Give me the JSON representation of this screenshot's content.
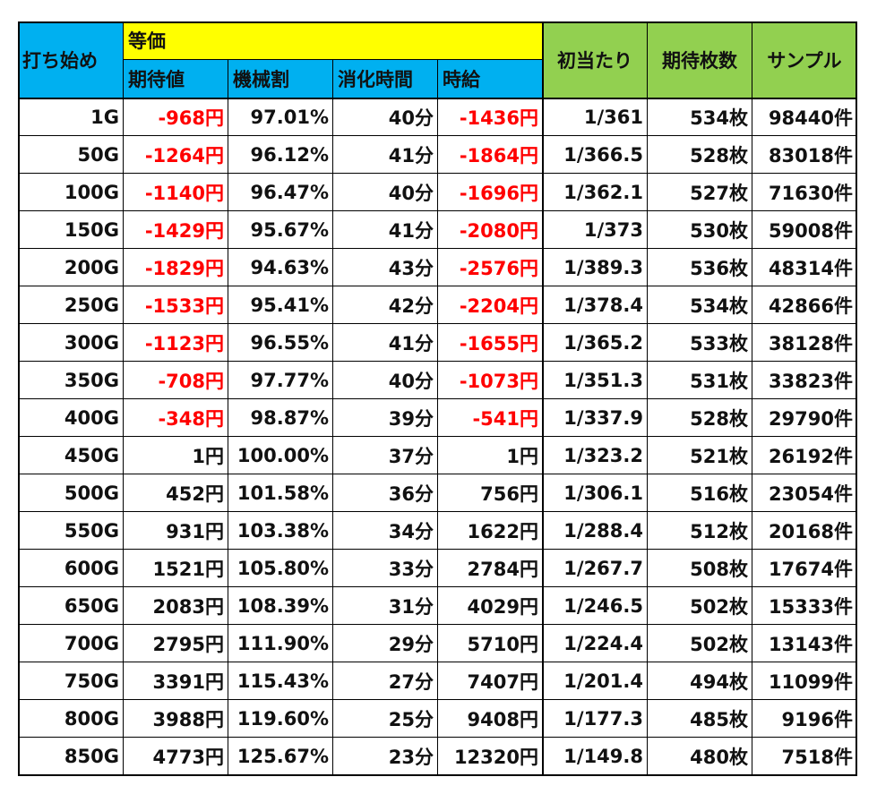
{
  "headers": {
    "start": "打ち始め",
    "group": "等価",
    "expected_value": "期待値",
    "payout_rate": "機械割",
    "time": "消化時間",
    "hourly": "時給",
    "first_hit": "初当たり",
    "expected_medals": "期待枚数",
    "sample": "サンプル"
  },
  "colors": {
    "blue_header": "#00b0f0",
    "yellow_header": "#ffff00",
    "green_header": "#92d050",
    "negative": "#ff0000"
  },
  "rows": [
    {
      "start": "1G",
      "ev": "-968円",
      "rate": "97.01%",
      "time": "40分",
      "hourly": "-1436円",
      "hit": "1/361",
      "medals": "534枚",
      "sample": "98440件",
      "neg": true
    },
    {
      "start": "50G",
      "ev": "-1264円",
      "rate": "96.12%",
      "time": "41分",
      "hourly": "-1864円",
      "hit": "1/366.5",
      "medals": "528枚",
      "sample": "83018件",
      "neg": true
    },
    {
      "start": "100G",
      "ev": "-1140円",
      "rate": "96.47%",
      "time": "40分",
      "hourly": "-1696円",
      "hit": "1/362.1",
      "medals": "527枚",
      "sample": "71630件",
      "neg": true
    },
    {
      "start": "150G",
      "ev": "-1429円",
      "rate": "95.67%",
      "time": "41分",
      "hourly": "-2080円",
      "hit": "1/373",
      "medals": "530枚",
      "sample": "59008件",
      "neg": true
    },
    {
      "start": "200G",
      "ev": "-1829円",
      "rate": "94.63%",
      "time": "43分",
      "hourly": "-2576円",
      "hit": "1/389.3",
      "medals": "536枚",
      "sample": "48314件",
      "neg": true
    },
    {
      "start": "250G",
      "ev": "-1533円",
      "rate": "95.41%",
      "time": "42分",
      "hourly": "-2204円",
      "hit": "1/378.4",
      "medals": "534枚",
      "sample": "42866件",
      "neg": true
    },
    {
      "start": "300G",
      "ev": "-1123円",
      "rate": "96.55%",
      "time": "41分",
      "hourly": "-1655円",
      "hit": "1/365.2",
      "medals": "533枚",
      "sample": "38128件",
      "neg": true
    },
    {
      "start": "350G",
      "ev": "-708円",
      "rate": "97.77%",
      "time": "40分",
      "hourly": "-1073円",
      "hit": "1/351.3",
      "medals": "531枚",
      "sample": "33823件",
      "neg": true
    },
    {
      "start": "400G",
      "ev": "-348円",
      "rate": "98.87%",
      "time": "39分",
      "hourly": "-541円",
      "hit": "1/337.9",
      "medals": "528枚",
      "sample": "29790件",
      "neg": true
    },
    {
      "start": "450G",
      "ev": "1円",
      "rate": "100.00%",
      "time": "37分",
      "hourly": "1円",
      "hit": "1/323.2",
      "medals": "521枚",
      "sample": "26192件",
      "neg": false
    },
    {
      "start": "500G",
      "ev": "452円",
      "rate": "101.58%",
      "time": "36分",
      "hourly": "756円",
      "hit": "1/306.1",
      "medals": "516枚",
      "sample": "23054件",
      "neg": false
    },
    {
      "start": "550G",
      "ev": "931円",
      "rate": "103.38%",
      "time": "34分",
      "hourly": "1622円",
      "hit": "1/288.4",
      "medals": "512枚",
      "sample": "20168件",
      "neg": false
    },
    {
      "start": "600G",
      "ev": "1521円",
      "rate": "105.80%",
      "time": "33分",
      "hourly": "2784円",
      "hit": "1/267.7",
      "medals": "508枚",
      "sample": "17674件",
      "neg": false
    },
    {
      "start": "650G",
      "ev": "2083円",
      "rate": "108.39%",
      "time": "31分",
      "hourly": "4029円",
      "hit": "1/246.5",
      "medals": "502枚",
      "sample": "15333件",
      "neg": false
    },
    {
      "start": "700G",
      "ev": "2795円",
      "rate": "111.90%",
      "time": "29分",
      "hourly": "5710円",
      "hit": "1/224.4",
      "medals": "502枚",
      "sample": "13143件",
      "neg": false
    },
    {
      "start": "750G",
      "ev": "3391円",
      "rate": "115.43%",
      "time": "27分",
      "hourly": "7407円",
      "hit": "1/201.4",
      "medals": "494枚",
      "sample": "11099件",
      "neg": false
    },
    {
      "start": "800G",
      "ev": "3988円",
      "rate": "119.60%",
      "time": "25分",
      "hourly": "9408円",
      "hit": "1/177.3",
      "medals": "485枚",
      "sample": "9196件",
      "neg": false
    },
    {
      "start": "850G",
      "ev": "4773円",
      "rate": "125.67%",
      "time": "23分",
      "hourly": "12320円",
      "hit": "1/149.8",
      "medals": "480枚",
      "sample": "7518件",
      "neg": false
    }
  ]
}
